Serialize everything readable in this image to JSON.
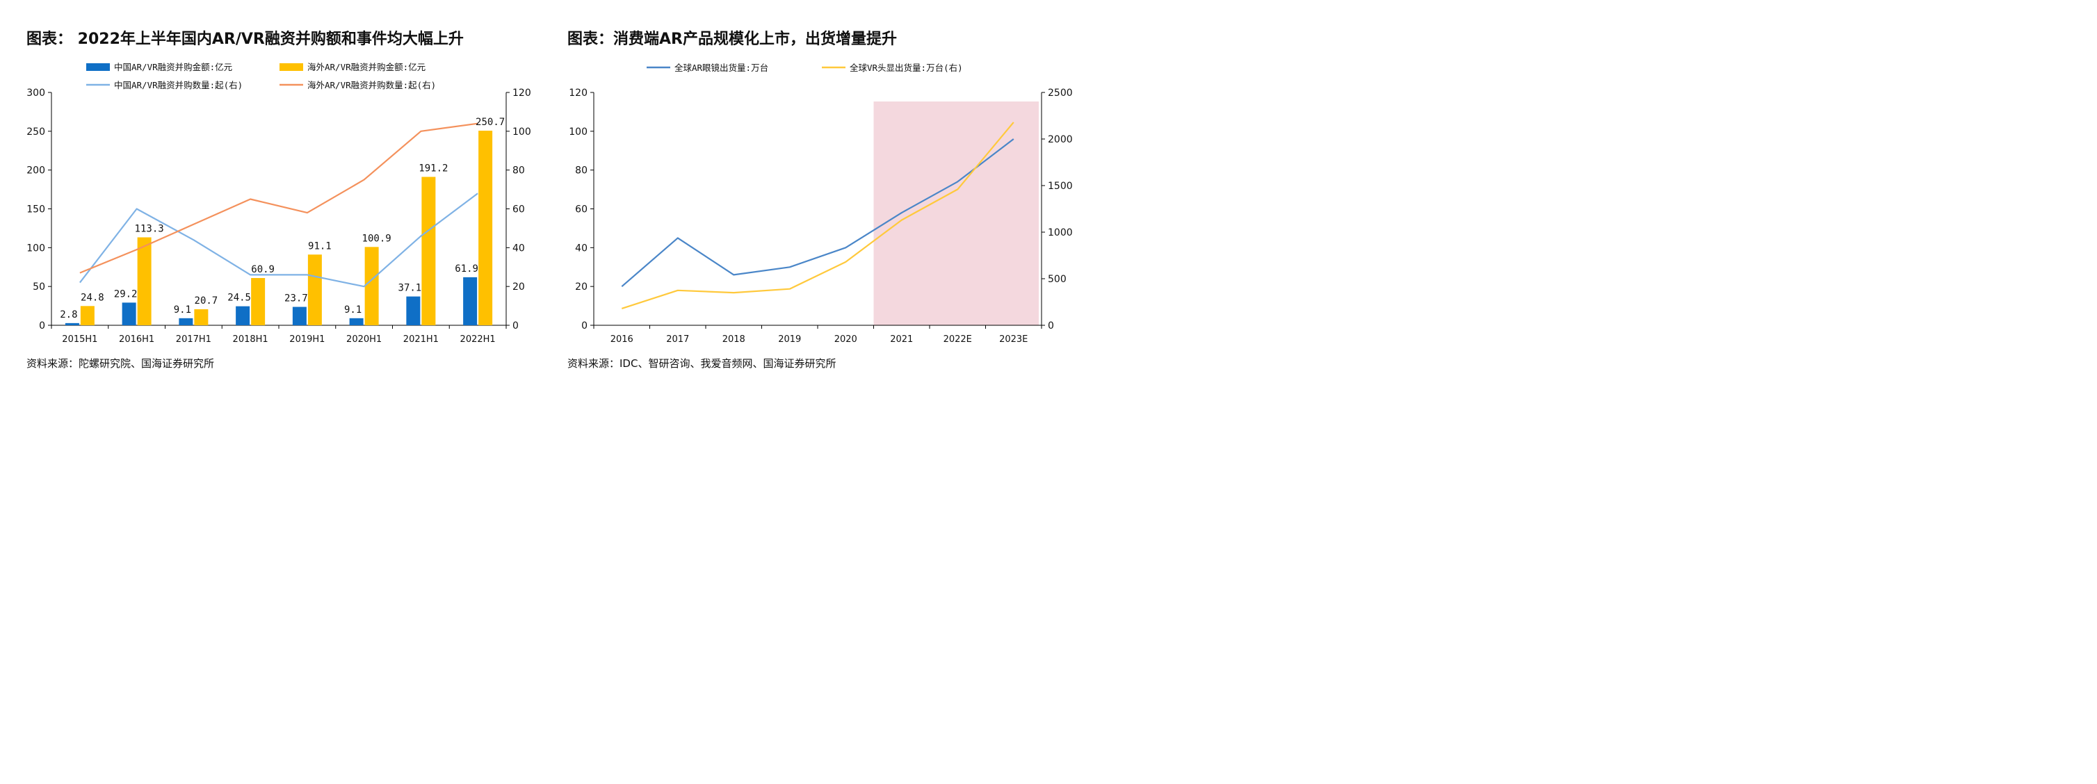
{
  "charts": {
    "left": {
      "title": "图表： 2022年上半年国内AR/VR融资并购额和事件均大幅上升",
      "source": "资料来源：陀螺研究院、国海证券研究所"
    },
    "right": {
      "title": "图表：消费端AR产品规模化上市，出货增量提升",
      "source": "资料来源：IDC、智研咨询、我爱音频网、国海证券研究所"
    }
  },
  "chart_data": [
    {
      "type": "bar",
      "title": "图表： 2022年上半年国内AR/VR融资并购额和事件均大幅上升",
      "categories": [
        "2015H1",
        "2016H1",
        "2017H1",
        "2018H1",
        "2019H1",
        "2020H1",
        "2021H1",
        "2022H1"
      ],
      "series": [
        {
          "name": "中国AR/VR融资并购金额:亿元",
          "type": "bar",
          "axis": "left",
          "color": "#0f6fc6",
          "values": [
            2.8,
            29.2,
            9.1,
            24.5,
            23.7,
            9.1,
            37.1,
            61.9
          ],
          "labels": [
            "2.8",
            "29.2",
            "9.1",
            "24.5",
            "23.7",
            "9.1",
            "37.1",
            "61.9"
          ]
        },
        {
          "name": "海外AR/VR融资并购金额:亿元",
          "type": "bar",
          "axis": "left",
          "color": "#ffc000",
          "values": [
            24.8,
            113.3,
            20.7,
            60.9,
            91.1,
            100.9,
            191.2,
            250.7
          ],
          "labels": [
            "24.8",
            "113.3",
            "20.7",
            "60.9",
            "91.1",
            "100.9",
            "191.2",
            "250.7"
          ]
        },
        {
          "name": "中国AR/VR融资并购数量:起(右)",
          "type": "line",
          "axis": "right",
          "color": "#7fb2e5",
          "values": [
            22,
            60,
            44,
            26,
            26,
            20,
            46,
            68
          ]
        },
        {
          "name": "海外AR/VR融资并购数量:起(右)",
          "type": "line",
          "axis": "right",
          "color": "#f4915c",
          "values": [
            27,
            39,
            52,
            65,
            58,
            75,
            100,
            104
          ]
        }
      ],
      "ylim": [
        0,
        300
      ],
      "yticks": [
        "0",
        "50",
        "100",
        "150",
        "200",
        "250",
        "300"
      ],
      "y2lim": [
        0,
        120
      ],
      "y2ticks": [
        "0",
        "20",
        "40",
        "60",
        "80",
        "100",
        "120"
      ],
      "legend_position": "top",
      "grid": false
    },
    {
      "type": "line",
      "title": "图表：消费端AR产品规模化上市，出货增量提升",
      "categories": [
        "2016",
        "2017",
        "2018",
        "2019",
        "2020",
        "2021",
        "2022E",
        "2023E"
      ],
      "series": [
        {
          "name": "全球AR眼镜出货量:万台",
          "axis": "left",
          "color": "#4a86c8",
          "values": [
            20,
            45,
            26,
            30,
            40,
            58,
            74,
            96
          ]
        },
        {
          "name": "全球VR头显出货量:万台(右)",
          "axis": "right",
          "color": "#ffc93c",
          "values": [
            180,
            375,
            350,
            390,
            680,
            1130,
            1460,
            2180
          ]
        }
      ],
      "ylim": [
        0,
        120
      ],
      "yticks": [
        "0",
        "20",
        "40",
        "60",
        "80",
        "100",
        "120"
      ],
      "y2lim": [
        0,
        2500
      ],
      "y2ticks": [
        "0",
        "500",
        "1000",
        "1500",
        "2000",
        "2500"
      ],
      "shaded_region": {
        "from": "2021",
        "to": "2023E",
        "color": "#f4d8de"
      },
      "legend_position": "top",
      "grid": false
    }
  ]
}
